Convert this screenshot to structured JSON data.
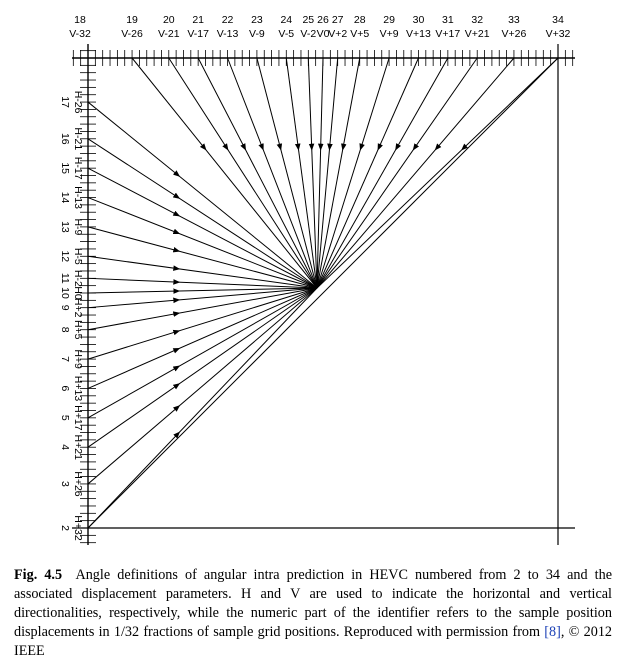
{
  "diagram": {
    "top_modes": [
      "18",
      "19",
      "20",
      "21",
      "22",
      "23",
      "24",
      "25",
      "26",
      "27",
      "28",
      "29",
      "30",
      "31",
      "32",
      "33",
      "34"
    ],
    "top_params": [
      "V-32",
      "V-26",
      "V-21",
      "V-17",
      "V-13",
      "V-9",
      "V-5",
      "V-2",
      "V0",
      "V+2",
      "V+5",
      "V+9",
      "V+13",
      "V+17",
      "V+21",
      "V+26",
      "V+32"
    ],
    "left_modes": [
      "17",
      "16",
      "15",
      "14",
      "13",
      "12",
      "11",
      "10",
      "9",
      "8",
      "7",
      "6",
      "5",
      "4",
      "3",
      "2"
    ],
    "left_params": [
      "H-26",
      "H-21",
      "H-17",
      "H-13",
      "H-9",
      "H-5",
      "H-2",
      "H0",
      "H+2",
      "H+5",
      "H+9",
      "H+13",
      "H+17",
      "H+21",
      "H+26",
      "H+32"
    ],
    "displacements": [
      -26,
      -21,
      -17,
      -13,
      -9,
      -5,
      -2,
      0,
      2,
      5,
      9,
      13,
      17,
      21,
      26,
      32
    ],
    "line_color": "#000000"
  },
  "caption": {
    "label": "Fig. 4.5",
    "text_before_ref": "Angle definitions of angular intra prediction in HEVC numbered from 2 to 34 and the associated displacement parameters. H and V are used to indicate the horizontal and vertical directionalities, respectively, while the numeric part of the identifier refers to the sample position displacements in 1/32 fractions of sample grid positions. Reproduced with permission from ",
    "ref": "[8]",
    "text_after_ref": ", © 2012 IEEE"
  }
}
